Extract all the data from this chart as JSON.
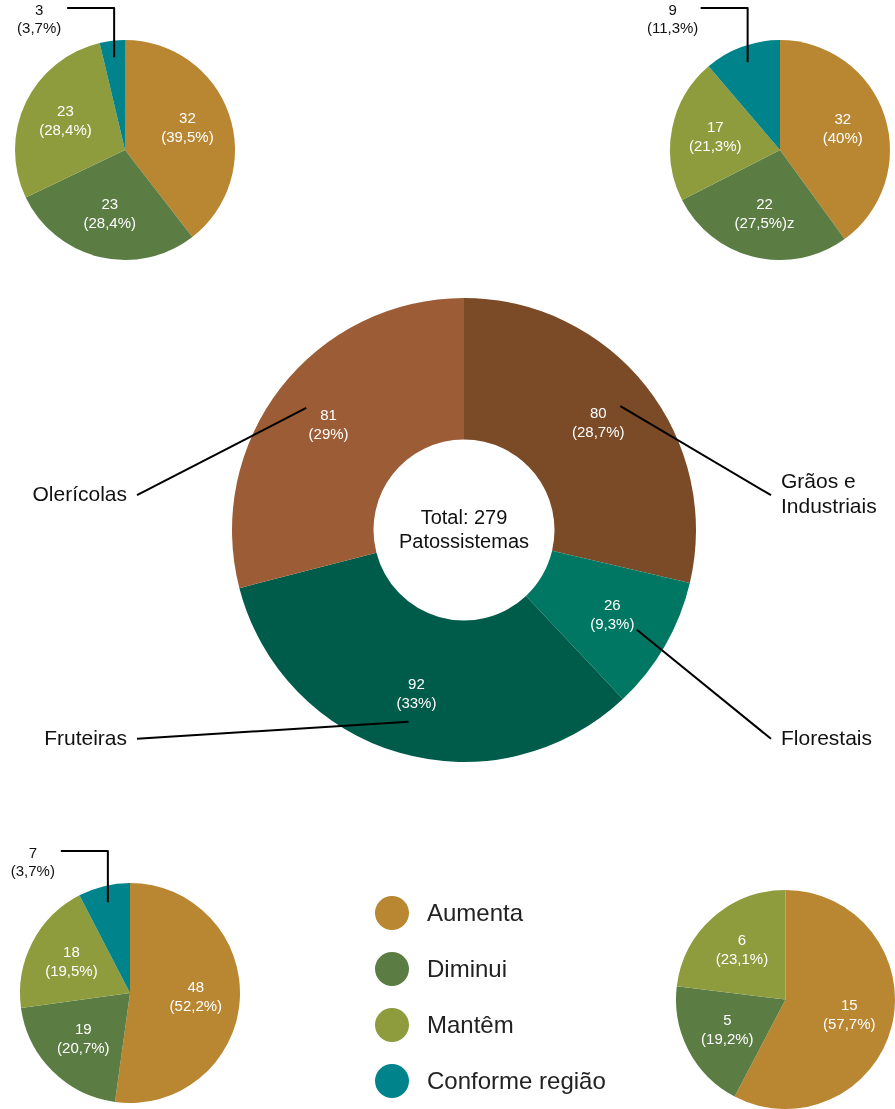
{
  "chart_data": [
    {
      "type": "pie",
      "categories": [
        "Aumenta",
        "Diminui",
        "Mantêm",
        "Conforme região"
      ],
      "values": [
        32,
        23,
        23,
        3
      ],
      "colors": [
        "#b98632",
        "#5b7d44",
        "#8e9c3e",
        "#00838a"
      ],
      "value_labels": [
        "32\n(39,5%)",
        "23\n(28,4%)",
        "23\n(28,4%)",
        "3\n(3,7%)"
      ],
      "legend": "bottom right"
    },
    {
      "type": "pie",
      "categories": [
        null,
        null,
        null,
        null
      ],
      "values": [
        32,
        22,
        17,
        9
      ],
      "colors": [
        "#b98632",
        "#5b7d44",
        "#8e9c3e",
        "#00838a"
      ],
      "value_labels": [
        "32\n(40%)",
        "22\n(27,5%)z",
        "17\n(21,3%)",
        "9\n(11,3%)"
      ],
      "legend": false
    },
    {
      "type": "donut",
      "categories": [
        "Grãos e Industriais",
        "Florestais",
        "Fruteiras",
        "Olerícolas"
      ],
      "values": [
        80,
        26,
        92,
        81
      ],
      "colors": [
        "#7b4a27",
        "#007763",
        "#005c4a",
        "#9c5d36"
      ],
      "value_labels": [
        "80\n(28,7%)",
        "26\n(9,3%)",
        "92\n(33%)",
        "81\n(29%)"
      ],
      "annotations": [
        "Total: 279\nPatossistemas"
      ],
      "legend": false
    },
    {
      "type": "pie",
      "categories": [
        null,
        null,
        null,
        null
      ],
      "values": [
        48,
        19,
        18,
        7
      ],
      "colors": [
        "#b98632",
        "#5b7d44",
        "#8e9c3e",
        "#00838a"
      ],
      "value_labels": [
        "48\n(52,2%)",
        "19\n(20,7%)",
        "18\n(19,5%)",
        "7\n(3,7%)"
      ],
      "legend": false
    },
    {
      "type": "pie",
      "categories": [
        null,
        null,
        null
      ],
      "values": [
        15,
        5,
        6
      ],
      "colors": [
        "#b98632",
        "#5b7d44",
        "#8e9c3e"
      ],
      "value_labels": [
        "15\n(57,7%)",
        "5\n(19,2%)",
        "6\n(23,1%)"
      ],
      "legend": false
    }
  ]
}
